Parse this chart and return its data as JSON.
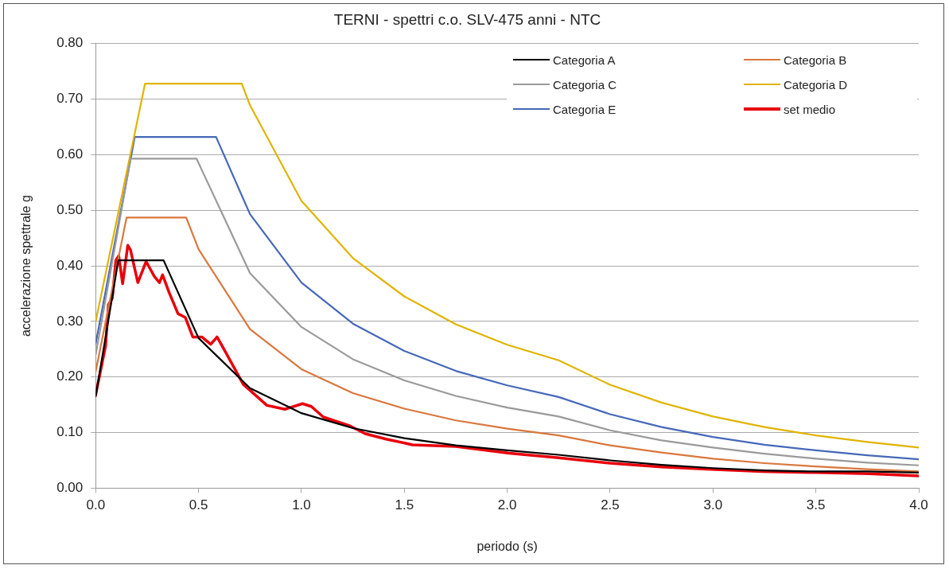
{
  "chart_data": {
    "type": "line",
    "title": "TERNI - spettri c.o. SLV-475 anni - NTC",
    "xlabel": "periodo (s)",
    "ylabel": "accelerazione spettrale g",
    "xlim": [
      0,
      4
    ],
    "xticks": [
      {
        "value": 0,
        "label": "0.0"
      },
      {
        "value": 0.5,
        "label": "0.5"
      },
      {
        "value": 1,
        "label": "1.0"
      },
      {
        "value": 1.5,
        "label": "1.5"
      },
      {
        "value": 2,
        "label": "2.0"
      },
      {
        "value": 2.5,
        "label": "2.5"
      },
      {
        "value": 3,
        "label": "3.0"
      },
      {
        "value": 3.5,
        "label": "3.5"
      },
      {
        "value": 4,
        "label": "4.0"
      }
    ],
    "ylim": [
      0,
      0.8
    ],
    "yticks": [
      {
        "value": 0,
        "label": "0.00"
      },
      {
        "value": 0.1,
        "label": "0.10"
      },
      {
        "value": 0.2,
        "label": "0.20"
      },
      {
        "value": 0.3,
        "label": "0.30"
      },
      {
        "value": 0.4,
        "label": "0.40"
      },
      {
        "value": 0.5,
        "label": "0.50"
      },
      {
        "value": 0.6,
        "label": "0.60"
      },
      {
        "value": 0.7,
        "label": "0.70"
      },
      {
        "value": 0.8,
        "label": "0.80"
      }
    ],
    "grid": "y",
    "legend": "top right",
    "marker": "none",
    "line_style": "solid",
    "series": [
      {
        "name": "Categoria A",
        "color": "#000000",
        "x": [
          0,
          0.11,
          0.33,
          0.5,
          0.75,
          1,
          1.25,
          1.5,
          1.75,
          2,
          2.25,
          2.5,
          2.75,
          3,
          3.25,
          3.5,
          3.75,
          4
        ],
        "values": [
          0.165,
          0.41,
          0.41,
          0.27,
          0.18,
          0.135,
          0.108,
          0.09,
          0.077,
          0.068,
          0.06,
          0.05,
          0.042,
          0.036,
          0.032,
          0.03,
          0.03,
          0.028
        ]
      },
      {
        "name": "Categoria B",
        "color": "#d9773d",
        "x": [
          0,
          0.15,
          0.44,
          0.5,
          0.75,
          1,
          1.25,
          1.5,
          1.75,
          2,
          2.25,
          2.5,
          2.75,
          3,
          3.25,
          3.5,
          3.75,
          4
        ],
        "values": [
          0.21,
          0.487,
          0.487,
          0.43,
          0.286,
          0.214,
          0.171,
          0.143,
          0.122,
          0.107,
          0.095,
          0.077,
          0.064,
          0.053,
          0.045,
          0.039,
          0.034,
          0.03
        ]
      },
      {
        "name": "Categoria C",
        "color": "#9a9a9a",
        "x": [
          0,
          0.17,
          0.49,
          0.75,
          1,
          1.25,
          1.5,
          1.75,
          2,
          2.25,
          2.5,
          2.75,
          3,
          3.25,
          3.5,
          3.75,
          4
        ],
        "values": [
          0.24,
          0.593,
          0.593,
          0.387,
          0.29,
          0.232,
          0.194,
          0.166,
          0.145,
          0.129,
          0.104,
          0.086,
          0.073,
          0.062,
          0.053,
          0.046,
          0.041
        ]
      },
      {
        "name": "Categoria D",
        "color": "#e0b400",
        "x": [
          0,
          0.24,
          0.71,
          0.75,
          1,
          1.25,
          1.5,
          1.75,
          2,
          2.25,
          2.5,
          2.75,
          3,
          3.25,
          3.5,
          3.75,
          4
        ],
        "values": [
          0.3,
          0.728,
          0.728,
          0.689,
          0.517,
          0.414,
          0.345,
          0.295,
          0.258,
          0.23,
          0.186,
          0.154,
          0.129,
          0.11,
          0.095,
          0.083,
          0.073
        ]
      },
      {
        "name": "Categoria E",
        "color": "#4668b8",
        "x": [
          0,
          0.19,
          0.585,
          0.75,
          1,
          1.25,
          1.5,
          1.75,
          2,
          2.25,
          2.5,
          2.75,
          3,
          3.25,
          3.5,
          3.75,
          4
        ],
        "values": [
          0.26,
          0.632,
          0.632,
          0.493,
          0.37,
          0.296,
          0.247,
          0.211,
          0.185,
          0.164,
          0.133,
          0.11,
          0.092,
          0.078,
          0.068,
          0.059,
          0.052
        ]
      },
      {
        "name": "set medio",
        "color": "#e8000b",
        "x": [
          0,
          0.048,
          0.062,
          0.081,
          0.098,
          0.112,
          0.131,
          0.156,
          0.169,
          0.205,
          0.245,
          0.285,
          0.31,
          0.325,
          0.357,
          0.4,
          0.436,
          0.472,
          0.516,
          0.559,
          0.59,
          0.631,
          0.717,
          0.832,
          0.919,
          1.005,
          1.048,
          1.106,
          1.236,
          1.31,
          1.415,
          1.54,
          1.75,
          2.01,
          2.24,
          2.5,
          2.75,
          2.99,
          3.24,
          3.5,
          3.76,
          4
        ],
        "values": [
          0.168,
          0.256,
          0.33,
          0.342,
          0.41,
          0.418,
          0.368,
          0.437,
          0.429,
          0.37,
          0.408,
          0.381,
          0.37,
          0.384,
          0.352,
          0.314,
          0.307,
          0.272,
          0.272,
          0.259,
          0.272,
          0.245,
          0.187,
          0.149,
          0.142,
          0.152,
          0.147,
          0.128,
          0.112,
          0.098,
          0.088,
          0.078,
          0.075,
          0.063,
          0.055,
          0.045,
          0.038,
          0.034,
          0.03,
          0.028,
          0.026,
          0.022
        ]
      }
    ]
  }
}
